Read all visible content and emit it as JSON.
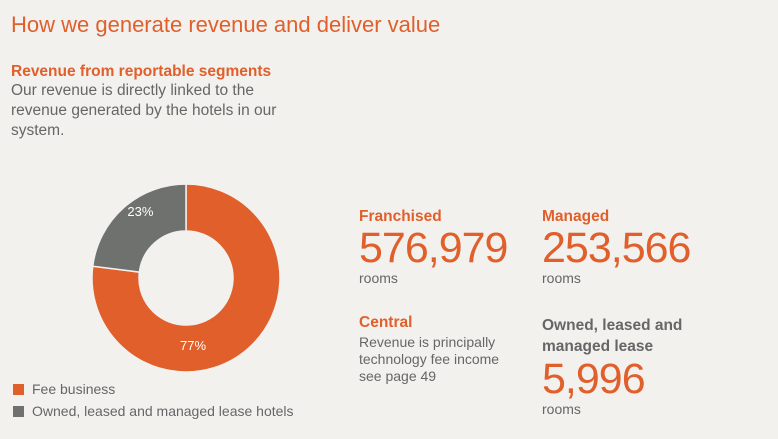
{
  "title": "How we generate revenue and deliver value",
  "subtitle": "Revenue from reportable segments",
  "description": "Our revenue is directly linked to the revenue generated by the hotels in our system.",
  "colors": {
    "accent": "#e05f2b",
    "gray": "#6f716f",
    "background": "#f2f1ee"
  },
  "chart_data": {
    "type": "pie",
    "donut": true,
    "categories": [
      "Fee business",
      "Owned, leased and managed lease hotels"
    ],
    "values": [
      77,
      23
    ],
    "labels": [
      "77%",
      "23%"
    ],
    "colors": [
      "#e05f2b",
      "#6f716f"
    ],
    "legend": "bottom-left"
  },
  "stats": {
    "franchised": {
      "label": "Franchised",
      "value": "576,979",
      "unit": "rooms"
    },
    "managed": {
      "label": "Managed",
      "value": "253,566",
      "unit": "rooms"
    },
    "central": {
      "label": "Central",
      "text": "Revenue is principally technology fee income see page 49"
    },
    "owned": {
      "label": "Owned, leased and managed lease",
      "value": "5,996",
      "unit": "rooms"
    }
  }
}
